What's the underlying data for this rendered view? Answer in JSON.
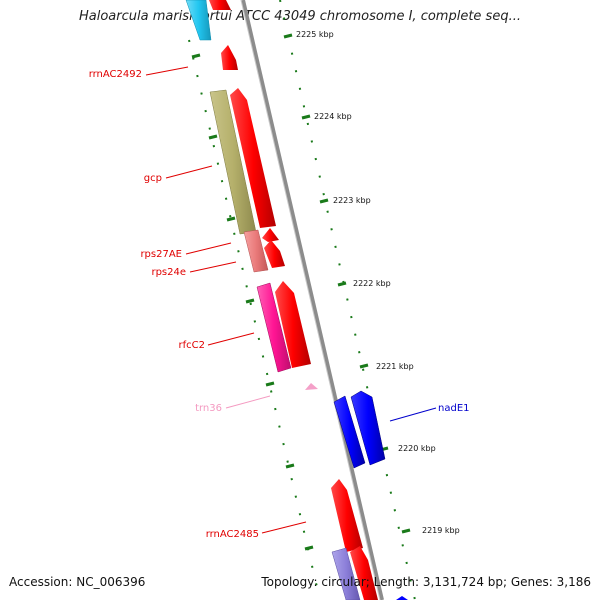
{
  "title": "Haloarcula marismortui ATCC 43049 chromosome I, complete seq...",
  "footer": {
    "accession": "Accession: NC_006396",
    "summary": "Topology: circular; Length: 3,131,724 bp; Genes: 3,186"
  },
  "ticks": [
    "2225 kbp",
    "2224 kbp",
    "2223 kbp",
    "2222 kbp",
    "2221 kbp",
    "2220 kbp",
    "2219 kbp"
  ],
  "gene_labels": [
    {
      "id": "rrnAC2492",
      "text": "rrnAC2492",
      "color": "#e00000"
    },
    {
      "id": "gcp",
      "text": "gcp",
      "color": "#e00000"
    },
    {
      "id": "rps27AE",
      "text": "rps27AE",
      "color": "#e00000"
    },
    {
      "id": "rps24e",
      "text": "rps24e",
      "color": "#e00000"
    },
    {
      "id": "rfcC2",
      "text": "rfcC2",
      "color": "#e00000"
    },
    {
      "id": "trn36",
      "text": "trn36",
      "color": "#f49ac1"
    },
    {
      "id": "nadE1",
      "text": "nadE1",
      "color": "#0000cc"
    },
    {
      "id": "rrnAC2485",
      "text": "rrnAC2485",
      "color": "#e00000"
    }
  ],
  "colors": {
    "cds": "#ff0000",
    "backbone": "#8c8c8c",
    "tick": "#1a7a1a",
    "gcp_feature": "#b5b06b",
    "rps_feature": "#ea7a7a",
    "rfc_feature": "#ff1493",
    "trna": "#f4a0c8",
    "nade": "#0000ff",
    "cyan_feature": "#22c6f0",
    "lavender_feature": "#8c7fd9"
  }
}
